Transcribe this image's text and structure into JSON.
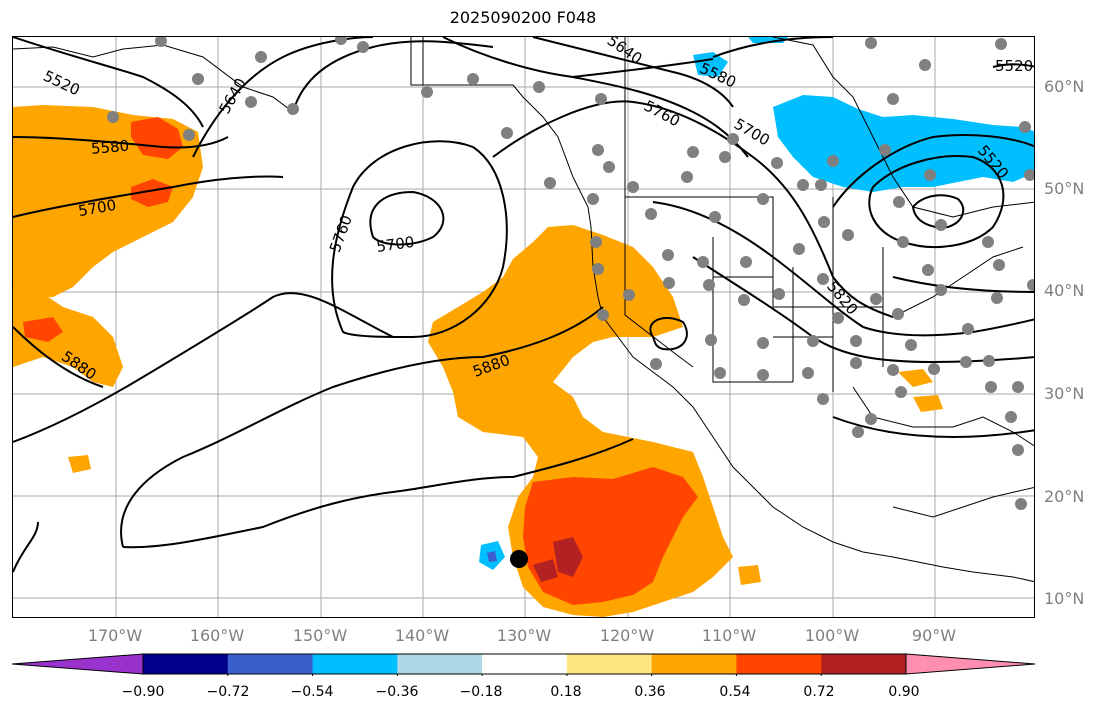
{
  "title": "2025090200 F048",
  "lat_labels": [
    "60°N",
    "50°N",
    "40°N",
    "30°N",
    "20°N",
    "10°N"
  ],
  "lon_labels": [
    "170°W",
    "160°W",
    "150°W",
    "140°W",
    "130°W",
    "120°W",
    "110°W",
    "100°W",
    "90°W"
  ],
  "colorbar": {
    "ticks": [
      "−0.90",
      "−0.72",
      "−0.54",
      "−0.36",
      "−0.18",
      "0.18",
      "0.36",
      "0.54",
      "0.72",
      "0.90"
    ],
    "colors": [
      "#9932CC",
      "#00008B",
      "#3A5FCD",
      "#00BFFF",
      "#ADD8E6",
      "#FFFFFF",
      "#FFE680",
      "#FFA500",
      "#FF4500",
      "#B22222",
      "#FF8FB0"
    ]
  },
  "contour_labels": [
    "5520",
    "5580",
    "5700",
    "5640",
    "5760",
    "5700",
    "5880",
    "5640",
    "5580",
    "5760",
    "5700",
    "5520",
    "5520",
    "5820",
    "5880"
  ],
  "shading_colors": {
    "positive_low": "#FFA500",
    "positive_mid": "#FF4500",
    "positive_high": "#B22222",
    "negative_low": "#00BFFF",
    "negative_mid": "#3A5FCD"
  }
}
